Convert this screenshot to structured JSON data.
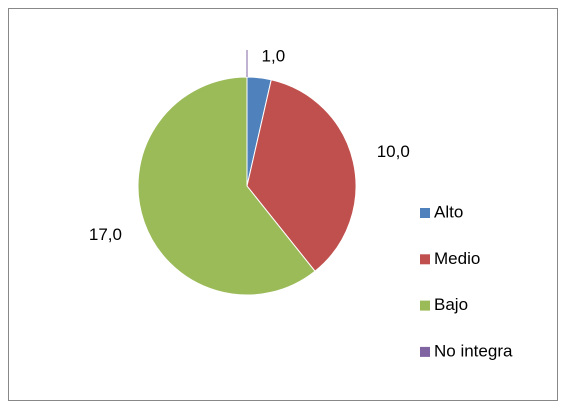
{
  "chart_data": {
    "type": "pie",
    "categories": [
      "Alto",
      "Medio",
      "Bajo",
      "No integra"
    ],
    "values": [
      1,
      10,
      17,
      0
    ],
    "value_labels": [
      "1,0",
      "10,0",
      "17,0",
      null
    ],
    "colors": [
      "#4f81bd",
      "#c0504d",
      "#9bbb59",
      "#8064a2"
    ],
    "legend": "right"
  }
}
